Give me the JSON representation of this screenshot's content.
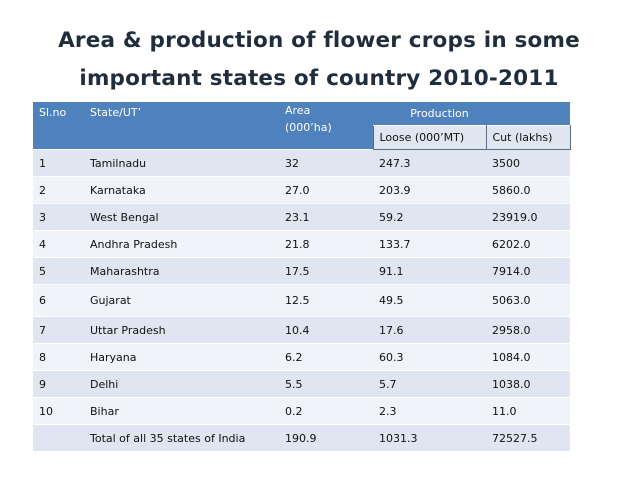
{
  "slide": {
    "title_line1": "Area & production of flower crops in some",
    "title_line2": "important states of country 2010-2011"
  },
  "table": {
    "headers": {
      "slno": "Sl.no",
      "state": "State/UT’",
      "area_line1": "Area",
      "area_line2": "(000’ha)",
      "production": "Production",
      "loose": "Loose (000’MT)",
      "cut": "Cut (lakhs)"
    },
    "rows": [
      {
        "slno": "1",
        "state": "Tamilnadu",
        "area": "32",
        "loose": "247.3",
        "cut": "3500"
      },
      {
        "slno": "2",
        "state": "Karnataka",
        "area": "27.0",
        "loose": "203.9",
        "cut": "5860.0"
      },
      {
        "slno": "3",
        "state": "West Bengal",
        "area": "23.1",
        "loose": "59.2",
        "cut": "23919.0"
      },
      {
        "slno": "4",
        "state": "Andhra Pradesh",
        "area": "21.8",
        "loose": "133.7",
        "cut": "6202.0"
      },
      {
        "slno": "5",
        "state": "Maharashtra",
        "area": "17.5",
        "loose": "91.1",
        "cut": "7914.0"
      },
      {
        "slno": "6",
        "state": "Gujarat",
        "area": "12.5",
        "loose": "49.5",
        "cut": "5063.0"
      },
      {
        "slno": "7",
        "state": "Uttar Pradesh",
        "area": "10.4",
        "loose": "17.6",
        "cut": "2958.0"
      },
      {
        "slno": "8",
        "state": "Haryana",
        "area": "6.2",
        "loose": "60.3",
        "cut": "1084.0"
      },
      {
        "slno": "9",
        "state": "Delhi",
        "area": "5.5",
        "loose": "5.7",
        "cut": "1038.0"
      },
      {
        "slno": "10",
        "state": "Bihar",
        "area": "0.2",
        "loose": "2.3",
        "cut": "11.0"
      }
    ],
    "total": {
      "slno": "",
      "state": "Total of all 35 states of India",
      "area": "190.9",
      "loose": "1031.3",
      "cut": "72527.5"
    }
  },
  "colors": {
    "header_blue": "#4f81bd",
    "row_dark": "#dfe6f1",
    "row_light": "#f0f3f9",
    "title": "#1f2d3d"
  }
}
